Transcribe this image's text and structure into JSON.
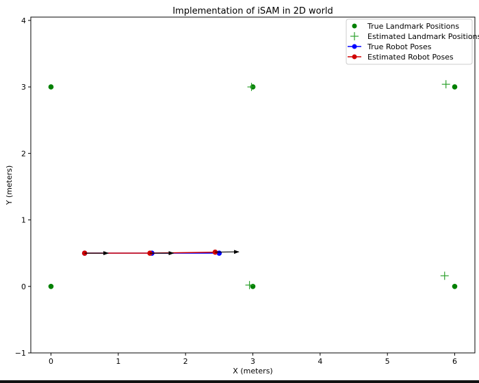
{
  "chart_data": {
    "type": "scatter",
    "title": "Implementation of iSAM in 2D world",
    "xlabel": "X (meters)",
    "ylabel": "Y (meters)",
    "xlim": [
      -0.3,
      6.3
    ],
    "ylim": [
      -1.0,
      4.05
    ],
    "xticks": [
      0,
      1,
      2,
      3,
      4,
      5,
      6
    ],
    "yticks": [
      -1,
      0,
      1,
      2,
      3,
      4
    ],
    "grid": false,
    "legend_position": "top-right",
    "series": [
      {
        "name": "True Landmark Positions",
        "marker": "dot",
        "color": "#008000",
        "x": [
          0,
          3,
          6,
          0,
          3,
          6
        ],
        "y": [
          3,
          3,
          3,
          0,
          0,
          0
        ]
      },
      {
        "name": "Estimated Landmark Positions",
        "marker": "plus",
        "color": "#2ca02c",
        "x": [
          2.98,
          5.87,
          2.95,
          5.85
        ],
        "y": [
          3.0,
          3.04,
          0.02,
          0.16
        ]
      },
      {
        "name": "True Robot Poses",
        "marker": "line-dot",
        "color": "#0000ff",
        "x": [
          0.5,
          1.5,
          2.5
        ],
        "y": [
          0.5,
          0.5,
          0.5
        ]
      },
      {
        "name": "Estimated Robot Poses",
        "marker": "line-dot",
        "color": "#d00000",
        "x": [
          0.5,
          1.47,
          2.44
        ],
        "y": [
          0.5,
          0.5,
          0.515
        ]
      }
    ],
    "heading_arrows": [
      {
        "x": 0.5,
        "y": 0.5,
        "dx": 0.35,
        "dy": 0.0
      },
      {
        "x": 1.47,
        "y": 0.5,
        "dx": 0.35,
        "dy": 0.0
      },
      {
        "x": 2.44,
        "y": 0.515,
        "dx": 0.35,
        "dy": 0.005
      }
    ]
  }
}
